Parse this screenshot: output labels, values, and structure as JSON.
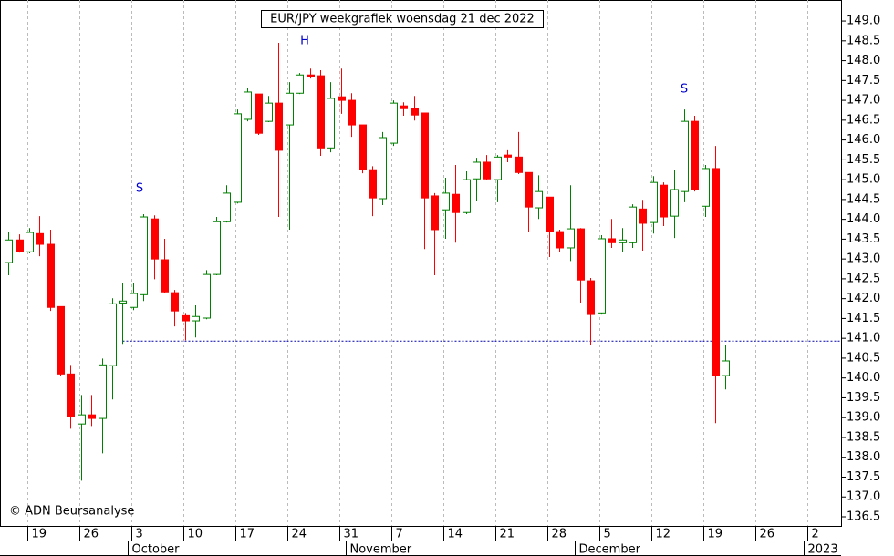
{
  "chart_data": {
    "type": "candlestick",
    "title": "EUR/JPY weekgrafiek woensdag 21 dec 2022",
    "credit": "© ADN Beursanalyse",
    "x": [
      0,
      1,
      2,
      3,
      4,
      5,
      6,
      7,
      8,
      9,
      10,
      11,
      12,
      13,
      14,
      15,
      16,
      17,
      18,
      19,
      20,
      21,
      22,
      23,
      24,
      25,
      26,
      27,
      28,
      29,
      30,
      31,
      32,
      33,
      34,
      35,
      36,
      37,
      38,
      39,
      40,
      41,
      42,
      43,
      44,
      45,
      46,
      47,
      48,
      49,
      50,
      51,
      52,
      53,
      54,
      55,
      56,
      57,
      58,
      59,
      60,
      61,
      62,
      63,
      64,
      65,
      66,
      67,
      68,
      69
    ],
    "open": [
      142.91,
      143.48,
      143.18,
      143.64,
      143.37,
      141.8,
      140.1,
      138.84,
      139.07,
      138.98,
      140.31,
      141.89,
      141.78,
      142.1,
      144.01,
      142.98,
      142.15,
      141.57,
      141.44,
      141.51,
      142.61,
      143.94,
      144.43,
      146.52,
      147.16,
      146.47,
      146.93,
      146.38,
      147.18,
      147.64,
      147.62,
      145.8,
      147.09,
      147.0,
      146.38,
      145.25,
      144.52,
      145.92,
      146.86,
      146.79,
      146.68,
      144.59,
      144.24,
      144.63,
      144.17,
      145.02,
      145.44,
      145.0,
      145.62,
      145.57,
      145.18,
      144.29,
      144.56,
      143.69,
      143.28,
      143.76,
      142.45,
      141.64,
      143.51,
      143.41,
      143.41,
      144.26,
      143.92,
      144.86,
      144.08,
      144.7,
      146.47,
      144.33,
      145.28,
      140.06
    ],
    "high": [
      143.67,
      143.62,
      143.78,
      144.08,
      143.74,
      141.8,
      140.33,
      139.57,
      139.57,
      140.49,
      142.01,
      142.4,
      142.4,
      144.13,
      144.1,
      143.51,
      142.22,
      141.64,
      141.83,
      142.72,
      144.06,
      144.86,
      146.77,
      147.3,
      147.16,
      147.11,
      148.45,
      147.46,
      147.69,
      147.8,
      147.76,
      147.46,
      147.8,
      147.18,
      146.38,
      145.34,
      146.2,
      147.0,
      146.95,
      147.11,
      146.68,
      144.66,
      145.05,
      145.37,
      145.21,
      145.55,
      145.62,
      145.62,
      145.74,
      146.2,
      145.18,
      145.11,
      144.56,
      143.74,
      144.86,
      143.78,
      142.52,
      143.6,
      144.01,
      143.78,
      144.38,
      144.49,
      145.09,
      144.93,
      145.25,
      146.77,
      146.61,
      145.37,
      145.85,
      140.82
    ],
    "low": [
      142.59,
      143.16,
      143.14,
      143.07,
      141.69,
      140.06,
      138.72,
      137.41,
      138.79,
      138.1,
      139.46,
      140.86,
      141.71,
      141.94,
      142.49,
      142.13,
      141.3,
      140.95,
      141.02,
      141.48,
      142.59,
      143.92,
      144.4,
      146.47,
      146.13,
      146.45,
      144.06,
      143.74,
      147.16,
      147.55,
      145.6,
      145.69,
      146.66,
      146.08,
      145.16,
      144.08,
      144.36,
      145.85,
      146.61,
      146.49,
      143.25,
      142.59,
      143.51,
      143.41,
      144.13,
      144.47,
      144.98,
      144.43,
      145.44,
      145.14,
      143.67,
      144.01,
      143.05,
      143.18,
      142.95,
      141.9,
      140.84,
      141.6,
      143.28,
      143.18,
      143.28,
      143.21,
      143.64,
      143.83,
      143.53,
      144.43,
      144.7,
      144.06,
      138.86,
      139.71
    ],
    "close": [
      143.48,
      143.18,
      143.67,
      143.37,
      141.78,
      140.1,
      139.02,
      139.07,
      138.98,
      140.33,
      141.87,
      141.94,
      142.13,
      144.06,
      143.0,
      142.17,
      141.69,
      141.44,
      141.55,
      142.61,
      143.94,
      144.66,
      146.66,
      147.21,
      146.17,
      146.93,
      145.74,
      147.18,
      147.64,
      147.6,
      145.8,
      147.05,
      147.0,
      146.38,
      145.25,
      144.54,
      146.06,
      146.93,
      146.79,
      146.63,
      144.54,
      143.74,
      144.66,
      144.17,
      145.0,
      145.44,
      145.02,
      145.57,
      145.57,
      145.18,
      144.31,
      144.7,
      143.69,
      143.28,
      143.76,
      142.47,
      141.6,
      143.51,
      143.41,
      143.48,
      144.31,
      143.9,
      144.93,
      144.06,
      144.75,
      146.47,
      144.75,
      145.28,
      140.06,
      140.43
    ],
    "up_color": "#008000",
    "down_color": "#ff0000",
    "ref_line": 140.93,
    "ref_color": "#0000aa",
    "annotations": [
      "S",
      "H",
      "S"
    ],
    "xlim": [
      -0.8,
      80.1
    ],
    "xticks": [
      {
        "value": 2,
        "label": "19"
      },
      {
        "value": 7,
        "label": "26"
      },
      {
        "value": 12,
        "label": "3"
      },
      {
        "value": 17,
        "label": "10"
      },
      {
        "value": 22,
        "label": "17"
      },
      {
        "value": 27,
        "label": "24"
      },
      {
        "value": 32,
        "label": "31"
      },
      {
        "value": 37,
        "label": "7"
      },
      {
        "value": 42,
        "label": "14"
      },
      {
        "value": 47,
        "label": "21"
      },
      {
        "value": 52,
        "label": "28"
      },
      {
        "value": 57,
        "label": "5"
      },
      {
        "value": 62,
        "label": "12"
      },
      {
        "value": 67,
        "label": "19"
      },
      {
        "value": 72,
        "label": "26"
      },
      {
        "value": 77,
        "label": "2"
      }
    ],
    "month_ticks": [
      {
        "value": 12,
        "label": "October"
      },
      {
        "value": 33,
        "label": "November"
      },
      {
        "value": 55,
        "label": "December"
      },
      {
        "value": 77,
        "label": "2023"
      }
    ],
    "ylim": [
      136.27,
      149.53
    ],
    "yticks": [
      136.5,
      {
        "value": 137,
        "label": "137.0"
      },
      137.5,
      {
        "value": 138,
        "label": "138.0"
      },
      138.5,
      {
        "value": 139,
        "label": "139.0"
      },
      139.5,
      {
        "value": 140,
        "label": "140.0"
      },
      140.5,
      {
        "value": 141,
        "label": "141.0"
      },
      141.5,
      {
        "value": 142,
        "label": "142.0"
      },
      142.5,
      {
        "value": 143,
        "label": "143.0"
      },
      143.5,
      {
        "value": 144,
        "label": "144.0"
      },
      144.5,
      {
        "value": 145,
        "label": "145.0"
      },
      145.5,
      {
        "value": 146,
        "label": "146.0"
      },
      146.5,
      {
        "value": 147,
        "label": "147.0"
      },
      147.5,
      {
        "value": 148,
        "label": "148.0"
      },
      148.5,
      {
        "value": 149,
        "label": "149.0"
      }
    ],
    "grid": true
  }
}
